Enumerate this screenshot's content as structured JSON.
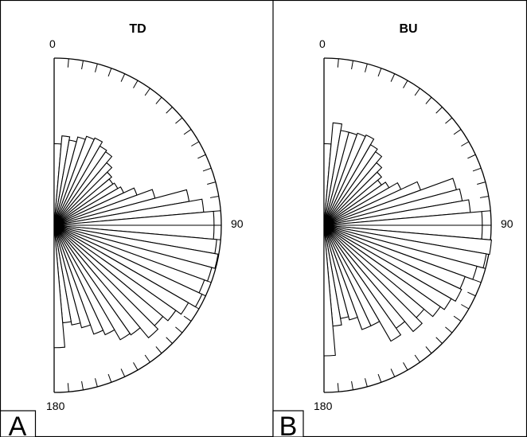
{
  "figure": {
    "panels": [
      {
        "title": "TD",
        "letter": "A",
        "angle_labels": [
          "0",
          "90",
          "180"
        ]
      },
      {
        "title": "BU",
        "letter": "B",
        "angle_labels": [
          "0",
          "90",
          "180"
        ]
      }
    ]
  },
  "chart_data": [
    {
      "type": "rose",
      "title": "TD",
      "panel_label": "A",
      "angle_range_deg": [
        0,
        180
      ],
      "angle_tick_labels": [
        "0",
        "90",
        "180"
      ],
      "bin_width_deg": 5,
      "bin_centers_deg": [
        2.5,
        7.5,
        12.5,
        17.5,
        22.5,
        27.5,
        32.5,
        37.5,
        42.5,
        47.5,
        52.5,
        57.5,
        62.5,
        67.5,
        72.5,
        77.5,
        82.5,
        87.5,
        92.5,
        97.5,
        102.5,
        107.5,
        112.5,
        117.5,
        122.5,
        127.5,
        132.5,
        137.5,
        142.5,
        147.5,
        152.5,
        157.5,
        162.5,
        167.5,
        172.5,
        177.5
      ],
      "values": [
        0.5,
        0.55,
        0.53,
        0.56,
        0.58,
        0.59,
        0.56,
        0.55,
        0.5,
        0.46,
        0.44,
        0.45,
        0.47,
        0.54,
        0.64,
        0.84,
        0.92,
        0.98,
        0.98,
        1.0,
        1.02,
        1.0,
        0.98,
        1.0,
        0.95,
        0.91,
        0.87,
        0.9,
        0.82,
        0.81,
        0.74,
        0.71,
        0.65,
        0.62,
        0.6,
        0.75
      ]
    },
    {
      "type": "rose",
      "title": "BU",
      "panel_label": "B",
      "angle_range_deg": [
        0,
        180
      ],
      "angle_tick_labels": [
        "0",
        "90",
        "180"
      ],
      "bin_width_deg": 5,
      "bin_centers_deg": [
        2.5,
        7.5,
        12.5,
        17.5,
        22.5,
        27.5,
        32.5,
        37.5,
        42.5,
        47.5,
        52.5,
        57.5,
        62.5,
        67.5,
        72.5,
        77.5,
        82.5,
        87.5,
        92.5,
        97.5,
        102.5,
        107.5,
        112.5,
        117.5,
        122.5,
        127.5,
        132.5,
        137.5,
        142.5,
        147.5,
        152.5,
        157.5,
        162.5,
        167.5,
        172.5,
        177.5
      ],
      "values": [
        0.5,
        0.63,
        0.59,
        0.59,
        0.6,
        0.61,
        0.57,
        0.55,
        0.5,
        0.46,
        0.43,
        0.46,
        0.52,
        0.63,
        0.84,
        0.86,
        0.9,
        0.97,
        0.97,
        1.03,
        1.01,
        0.97,
        0.92,
        0.93,
        0.9,
        0.87,
        0.8,
        0.85,
        0.77,
        0.82,
        0.68,
        0.68,
        0.6,
        0.58,
        0.62,
        0.8
      ]
    }
  ]
}
